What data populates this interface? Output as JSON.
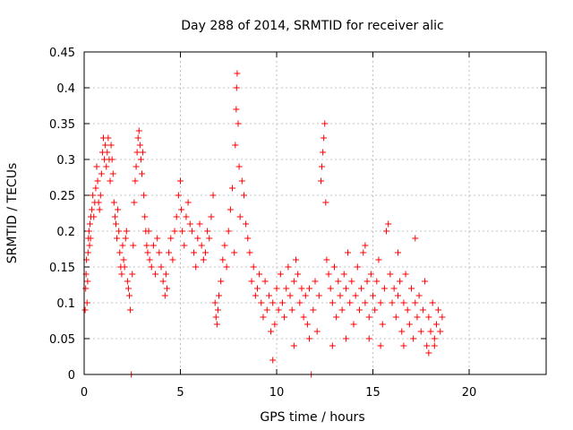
{
  "chart_data": {
    "type": "scatter",
    "title": "Day 288 of 2014, SRMTID for receiver alic",
    "xlabel": "GPS time / hours",
    "ylabel": "SRMTID / TECUs",
    "xlim": [
      0,
      24
    ],
    "ylim": [
      0,
      0.45
    ],
    "xticks": [
      0,
      5,
      10,
      15,
      20
    ],
    "xtick_labels": [
      "0",
      "5",
      "10",
      "15",
      "20"
    ],
    "yticks": [
      0,
      0.05,
      0.1,
      0.15,
      0.2,
      0.25,
      0.3,
      0.35,
      0.4,
      0.45
    ],
    "ytick_labels": [
      "0",
      "0.05",
      "0.1",
      "0.15",
      "0.2",
      "0.25",
      "0.3",
      "0.35",
      "0.4",
      "0.45"
    ],
    "grid": true,
    "marker": "+",
    "series": [
      {
        "name": "SRMTID",
        "color": "#ff0000",
        "points": [
          [
            0.05,
            0.09
          ],
          [
            0.08,
            0.12
          ],
          [
            0.1,
            0.14
          ],
          [
            0.12,
            0.16
          ],
          [
            0.15,
            0.1
          ],
          [
            0.18,
            0.13
          ],
          [
            0.2,
            0.17
          ],
          [
            0.22,
            0.19
          ],
          [
            0.25,
            0.2
          ],
          [
            0.28,
            0.18
          ],
          [
            0.3,
            0.21
          ],
          [
            0.33,
            0.19
          ],
          [
            0.35,
            0.22
          ],
          [
            0.4,
            0.23
          ],
          [
            0.45,
            0.25
          ],
          [
            0.5,
            0.22
          ],
          [
            0.55,
            0.24
          ],
          [
            0.6,
            0.26
          ],
          [
            0.65,
            0.29
          ],
          [
            0.7,
            0.27
          ],
          [
            0.75,
            0.24
          ],
          [
            0.8,
            0.23
          ],
          [
            0.85,
            0.25
          ],
          [
            0.9,
            0.28
          ],
          [
            0.95,
            0.31
          ],
          [
            1.0,
            0.33
          ],
          [
            1.05,
            0.3
          ],
          [
            1.1,
            0.32
          ],
          [
            1.15,
            0.29
          ],
          [
            1.2,
            0.31
          ],
          [
            1.25,
            0.33
          ],
          [
            1.3,
            0.3
          ],
          [
            1.35,
            0.27
          ],
          [
            1.4,
            0.32
          ],
          [
            1.45,
            0.3
          ],
          [
            1.5,
            0.28
          ],
          [
            1.55,
            0.24
          ],
          [
            1.6,
            0.22
          ],
          [
            1.65,
            0.21
          ],
          [
            1.7,
            0.19
          ],
          [
            1.75,
            0.23
          ],
          [
            1.8,
            0.2
          ],
          [
            1.85,
            0.17
          ],
          [
            1.9,
            0.15
          ],
          [
            1.95,
            0.14
          ],
          [
            2.0,
            0.18
          ],
          [
            2.05,
            0.16
          ],
          [
            2.1,
            0.15
          ],
          [
            2.15,
            0.19
          ],
          [
            2.2,
            0.2
          ],
          [
            2.25,
            0.13
          ],
          [
            2.3,
            0.12
          ],
          [
            2.35,
            0.11
          ],
          [
            2.4,
            0.09
          ],
          [
            2.45,
            0.0
          ],
          [
            2.5,
            0.14
          ],
          [
            2.55,
            0.18
          ],
          [
            2.6,
            0.24
          ],
          [
            2.65,
            0.27
          ],
          [
            2.7,
            0.29
          ],
          [
            2.75,
            0.31
          ],
          [
            2.8,
            0.33
          ],
          [
            2.85,
            0.34
          ],
          [
            2.9,
            0.32
          ],
          [
            2.95,
            0.3
          ],
          [
            3.0,
            0.28
          ],
          [
            3.05,
            0.31
          ],
          [
            3.1,
            0.25
          ],
          [
            3.15,
            0.22
          ],
          [
            3.2,
            0.2
          ],
          [
            3.25,
            0.18
          ],
          [
            3.3,
            0.17
          ],
          [
            3.35,
            0.2
          ],
          [
            3.4,
            0.16
          ],
          [
            3.5,
            0.15
          ],
          [
            3.6,
            0.18
          ],
          [
            3.7,
            0.14
          ],
          [
            3.8,
            0.19
          ],
          [
            3.9,
            0.17
          ],
          [
            4.0,
            0.15
          ],
          [
            4.1,
            0.13
          ],
          [
            4.2,
            0.11
          ],
          [
            4.25,
            0.14
          ],
          [
            4.3,
            0.12
          ],
          [
            4.4,
            0.17
          ],
          [
            4.5,
            0.19
          ],
          [
            4.6,
            0.16
          ],
          [
            4.7,
            0.2
          ],
          [
            4.8,
            0.22
          ],
          [
            4.9,
            0.25
          ],
          [
            5.0,
            0.27
          ],
          [
            5.05,
            0.23
          ],
          [
            5.1,
            0.2
          ],
          [
            5.2,
            0.18
          ],
          [
            5.3,
            0.22
          ],
          [
            5.4,
            0.24
          ],
          [
            5.5,
            0.21
          ],
          [
            5.6,
            0.2
          ],
          [
            5.7,
            0.17
          ],
          [
            5.8,
            0.15
          ],
          [
            5.9,
            0.19
          ],
          [
            6.0,
            0.21
          ],
          [
            6.1,
            0.18
          ],
          [
            6.2,
            0.16
          ],
          [
            6.3,
            0.17
          ],
          [
            6.4,
            0.2
          ],
          [
            6.5,
            0.19
          ],
          [
            6.6,
            0.22
          ],
          [
            6.7,
            0.25
          ],
          [
            6.8,
            0.1
          ],
          [
            6.85,
            0.08
          ],
          [
            6.9,
            0.07
          ],
          [
            6.95,
            0.09
          ],
          [
            7.0,
            0.11
          ],
          [
            7.1,
            0.13
          ],
          [
            7.2,
            0.16
          ],
          [
            7.3,
            0.18
          ],
          [
            7.4,
            0.15
          ],
          [
            7.5,
            0.2
          ],
          [
            7.6,
            0.23
          ],
          [
            7.7,
            0.26
          ],
          [
            7.8,
            0.17
          ],
          [
            7.85,
            0.32
          ],
          [
            7.9,
            0.37
          ],
          [
            7.92,
            0.4
          ],
          [
            7.95,
            0.42
          ],
          [
            8.0,
            0.35
          ],
          [
            8.05,
            0.29
          ],
          [
            8.1,
            0.22
          ],
          [
            8.2,
            0.27
          ],
          [
            8.3,
            0.25
          ],
          [
            8.4,
            0.21
          ],
          [
            8.5,
            0.19
          ],
          [
            8.6,
            0.17
          ],
          [
            8.7,
            0.13
          ],
          [
            8.8,
            0.15
          ],
          [
            8.9,
            0.11
          ],
          [
            9.0,
            0.12
          ],
          [
            9.1,
            0.14
          ],
          [
            9.2,
            0.1
          ],
          [
            9.3,
            0.08
          ],
          [
            9.4,
            0.13
          ],
          [
            9.5,
            0.09
          ],
          [
            9.6,
            0.11
          ],
          [
            9.7,
            0.06
          ],
          [
            9.8,
            0.1
          ],
          [
            9.9,
            0.07
          ],
          [
            10.0,
            0.12
          ],
          [
            10.1,
            0.09
          ],
          [
            10.2,
            0.14
          ],
          [
            10.3,
            0.1
          ],
          [
            10.4,
            0.08
          ],
          [
            10.5,
            0.12
          ],
          [
            10.6,
            0.15
          ],
          [
            10.7,
            0.11
          ],
          [
            10.8,
            0.09
          ],
          [
            10.9,
            0.13
          ],
          [
            11.0,
            0.16
          ],
          [
            11.1,
            0.14
          ],
          [
            11.2,
            0.1
          ],
          [
            11.3,
            0.12
          ],
          [
            11.4,
            0.08
          ],
          [
            11.5,
            0.11
          ],
          [
            11.6,
            0.07
          ],
          [
            11.7,
            0.12
          ],
          [
            11.8,
            0.0
          ],
          [
            11.9,
            0.09
          ],
          [
            12.0,
            0.13
          ],
          [
            12.1,
            0.06
          ],
          [
            12.2,
            0.11
          ],
          [
            12.3,
            0.27
          ],
          [
            12.35,
            0.29
          ],
          [
            12.4,
            0.31
          ],
          [
            12.45,
            0.33
          ],
          [
            12.5,
            0.35
          ],
          [
            12.55,
            0.24
          ],
          [
            12.6,
            0.16
          ],
          [
            12.7,
            0.14
          ],
          [
            12.8,
            0.12
          ],
          [
            12.9,
            0.1
          ],
          [
            13.0,
            0.15
          ],
          [
            13.1,
            0.08
          ],
          [
            13.2,
            0.13
          ],
          [
            13.3,
            0.11
          ],
          [
            13.4,
            0.09
          ],
          [
            13.5,
            0.14
          ],
          [
            13.6,
            0.12
          ],
          [
            13.7,
            0.17
          ],
          [
            13.8,
            0.1
          ],
          [
            13.9,
            0.13
          ],
          [
            14.0,
            0.07
          ],
          [
            14.1,
            0.11
          ],
          [
            14.2,
            0.15
          ],
          [
            14.3,
            0.09
          ],
          [
            14.4,
            0.12
          ],
          [
            14.5,
            0.17
          ],
          [
            14.6,
            0.1
          ],
          [
            14.7,
            0.13
          ],
          [
            14.8,
            0.08
          ],
          [
            14.9,
            0.14
          ],
          [
            15.0,
            0.11
          ],
          [
            15.1,
            0.09
          ],
          [
            15.2,
            0.13
          ],
          [
            15.3,
            0.16
          ],
          [
            15.4,
            0.1
          ],
          [
            15.5,
            0.07
          ],
          [
            15.6,
            0.12
          ],
          [
            15.7,
            0.2
          ],
          [
            15.8,
            0.21
          ],
          [
            15.9,
            0.14
          ],
          [
            16.0,
            0.1
          ],
          [
            16.1,
            0.12
          ],
          [
            16.2,
            0.08
          ],
          [
            16.3,
            0.11
          ],
          [
            16.4,
            0.13
          ],
          [
            16.5,
            0.06
          ],
          [
            16.6,
            0.1
          ],
          [
            16.7,
            0.14
          ],
          [
            16.8,
            0.09
          ],
          [
            16.9,
            0.07
          ],
          [
            17.0,
            0.12
          ],
          [
            17.1,
            0.05
          ],
          [
            17.2,
            0.1
          ],
          [
            17.3,
            0.08
          ],
          [
            17.4,
            0.11
          ],
          [
            17.5,
            0.06
          ],
          [
            17.6,
            0.09
          ],
          [
            17.7,
            0.13
          ],
          [
            17.8,
            0.04
          ],
          [
            17.9,
            0.08
          ],
          [
            18.0,
            0.06
          ],
          [
            18.1,
            0.1
          ],
          [
            18.2,
            0.05
          ],
          [
            18.3,
            0.07
          ],
          [
            18.4,
            0.09
          ],
          [
            18.5,
            0.06
          ],
          [
            18.6,
            0.08
          ],
          [
            17.2,
            0.19
          ],
          [
            16.3,
            0.17
          ],
          [
            14.6,
            0.18
          ],
          [
            9.8,
            0.02
          ],
          [
            10.9,
            0.04
          ],
          [
            11.7,
            0.05
          ],
          [
            12.9,
            0.04
          ],
          [
            13.6,
            0.05
          ],
          [
            14.8,
            0.05
          ],
          [
            15.4,
            0.04
          ],
          [
            16.6,
            0.04
          ],
          [
            17.9,
            0.03
          ],
          [
            18.2,
            0.04
          ]
        ]
      }
    ]
  }
}
